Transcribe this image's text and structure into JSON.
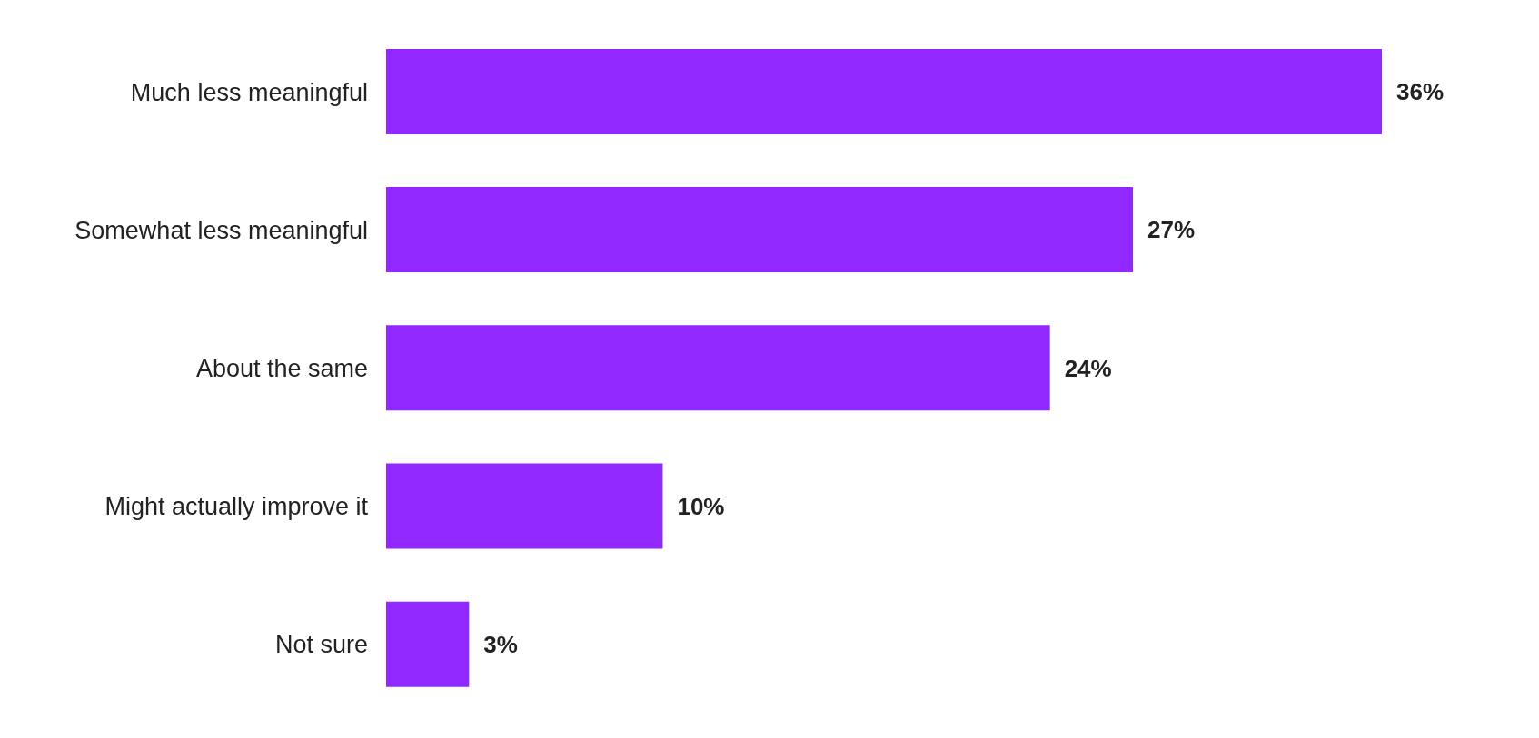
{
  "chart_data": {
    "type": "bar",
    "orientation": "horizontal",
    "categories": [
      "Much less meaningful",
      "Somewhat less meaningful",
      "About the same",
      "Might actually improve it",
      "Not sure"
    ],
    "values": [
      36,
      27,
      24,
      10,
      3
    ],
    "value_labels": [
      "36%",
      "27%",
      "24%",
      "10%",
      "3%"
    ],
    "color": "#9128ff",
    "tick_labels": "y"
  }
}
